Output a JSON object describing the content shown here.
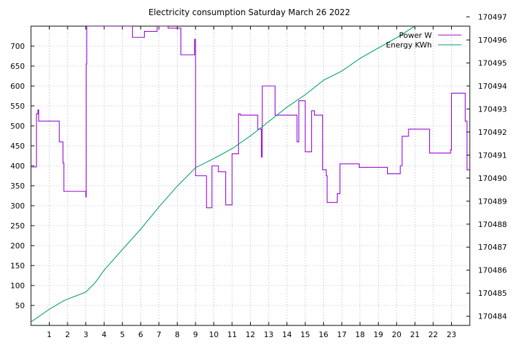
{
  "chart_data": {
    "type": "line",
    "title": "Electricity consumption Saturday March 26 2022",
    "xlabel": "",
    "ylabel": "",
    "xlim": [
      0,
      24
    ],
    "ylim": [
      0,
      750
    ],
    "y2lim": [
      170483.6,
      170496.6
    ],
    "x_ticks": [
      "1",
      "2",
      "3",
      "4",
      "5",
      "6",
      "7",
      "8",
      "9",
      "10",
      "11",
      "12",
      "13",
      "14",
      "15",
      "16",
      "17",
      "18",
      "19",
      "20",
      "21",
      "22",
      "23"
    ],
    "y_ticks": [
      "50",
      "100",
      "150",
      "200",
      "250",
      "300",
      "350",
      "400",
      "450",
      "500",
      "550",
      "600",
      "650",
      "700"
    ],
    "y2_ticks": [
      "170484",
      "170485",
      "170486",
      "170487",
      "170488",
      "170489",
      "170490",
      "170491",
      "170492",
      "170493",
      "170494",
      "170495",
      "170496",
      "170497"
    ],
    "grid": true,
    "legend_position": "top-right",
    "series": [
      {
        "name": "Power W",
        "axis": "left",
        "color": "#9400d3",
        "style": "step",
        "points": [
          [
            0.0,
            397
          ],
          [
            0.3,
            397
          ],
          [
            0.3,
            530
          ],
          [
            0.38,
            530
          ],
          [
            0.38,
            540
          ],
          [
            0.42,
            540
          ],
          [
            0.42,
            512
          ],
          [
            1.55,
            512
          ],
          [
            1.55,
            460
          ],
          [
            1.75,
            460
          ],
          [
            1.75,
            407
          ],
          [
            1.8,
            407
          ],
          [
            1.8,
            336
          ],
          [
            3.0,
            336
          ],
          [
            3.0,
            322
          ],
          [
            3.02,
            322
          ],
          [
            3.02,
            655
          ],
          [
            3.05,
            655
          ],
          [
            3.05,
            750
          ],
          [
            5.55,
            750
          ],
          [
            5.55,
            722
          ],
          [
            6.2,
            722
          ],
          [
            6.2,
            737
          ],
          [
            6.9,
            737
          ],
          [
            6.9,
            750
          ],
          [
            7.5,
            750
          ],
          [
            7.5,
            745
          ],
          [
            8.2,
            745
          ],
          [
            8.2,
            678
          ],
          [
            8.95,
            678
          ],
          [
            8.95,
            717
          ],
          [
            9.0,
            717
          ],
          [
            9.0,
            375
          ],
          [
            9.6,
            375
          ],
          [
            9.6,
            295
          ],
          [
            9.9,
            295
          ],
          [
            9.9,
            400
          ],
          [
            10.25,
            400
          ],
          [
            10.25,
            385
          ],
          [
            10.65,
            385
          ],
          [
            10.65,
            302
          ],
          [
            11.0,
            302
          ],
          [
            11.0,
            430
          ],
          [
            11.35,
            430
          ],
          [
            11.35,
            530
          ],
          [
            11.45,
            530
          ],
          [
            11.45,
            527
          ],
          [
            12.4,
            527
          ],
          [
            12.4,
            492
          ],
          [
            12.6,
            492
          ],
          [
            12.6,
            422
          ],
          [
            12.65,
            422
          ],
          [
            12.65,
            600
          ],
          [
            13.35,
            600
          ],
          [
            13.35,
            527
          ],
          [
            14.55,
            527
          ],
          [
            14.55,
            460
          ],
          [
            14.65,
            460
          ],
          [
            14.65,
            563
          ],
          [
            15.0,
            563
          ],
          [
            15.0,
            435
          ],
          [
            15.35,
            435
          ],
          [
            15.35,
            538
          ],
          [
            15.5,
            538
          ],
          [
            15.5,
            527
          ],
          [
            15.95,
            527
          ],
          [
            15.95,
            390
          ],
          [
            16.15,
            390
          ],
          [
            16.15,
            375
          ],
          [
            16.2,
            375
          ],
          [
            16.2,
            308
          ],
          [
            16.75,
            308
          ],
          [
            16.75,
            330
          ],
          [
            16.9,
            330
          ],
          [
            16.9,
            405
          ],
          [
            17.95,
            405
          ],
          [
            17.95,
            396
          ],
          [
            19.5,
            396
          ],
          [
            19.5,
            380
          ],
          [
            20.2,
            380
          ],
          [
            20.2,
            400
          ],
          [
            20.3,
            400
          ],
          [
            20.3,
            474
          ],
          [
            20.65,
            474
          ],
          [
            20.65,
            492
          ],
          [
            21.8,
            492
          ],
          [
            21.8,
            432
          ],
          [
            22.95,
            432
          ],
          [
            22.95,
            440
          ],
          [
            23.0,
            440
          ],
          [
            23.0,
            582
          ],
          [
            23.75,
            582
          ],
          [
            23.75,
            512
          ],
          [
            23.85,
            512
          ],
          [
            23.85,
            390
          ],
          [
            24.0,
            390
          ]
        ]
      },
      {
        "name": "Energy KWh",
        "axis": "right",
        "color": "#009e73",
        "style": "line",
        "points": [
          [
            0.0,
            170483.75
          ],
          [
            1.0,
            170484.3
          ],
          [
            1.8,
            170484.68
          ],
          [
            3.0,
            170485.05
          ],
          [
            3.5,
            170485.45
          ],
          [
            4.0,
            170486.0
          ],
          [
            5.0,
            170486.9
          ],
          [
            6.0,
            170487.78
          ],
          [
            7.0,
            170488.75
          ],
          [
            8.0,
            170489.65
          ],
          [
            9.0,
            170490.45
          ],
          [
            10.0,
            170490.85
          ],
          [
            11.0,
            170491.28
          ],
          [
            12.0,
            170491.83
          ],
          [
            13.0,
            170492.45
          ],
          [
            14.0,
            170493.08
          ],
          [
            15.0,
            170493.62
          ],
          [
            16.0,
            170494.25
          ],
          [
            17.0,
            170494.65
          ],
          [
            18.0,
            170495.2
          ],
          [
            19.0,
            170495.65
          ],
          [
            20.0,
            170496.1
          ],
          [
            21.0,
            170496.6
          ]
        ]
      }
    ]
  }
}
